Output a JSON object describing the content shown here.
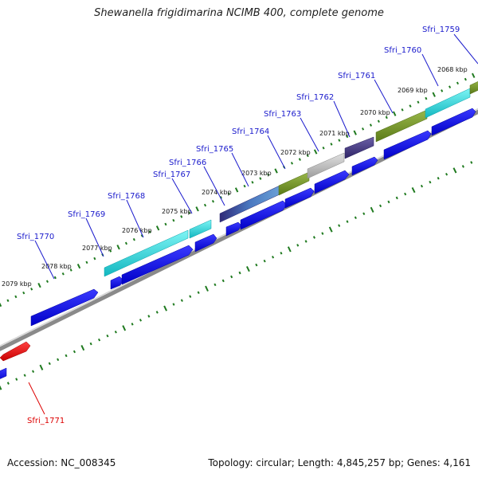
{
  "title": "Shewanella frigidimarina NCIMB 400, complete genome",
  "footer": {
    "accession": "Accession: NC_008345",
    "summary": "Topology: circular; Length: 4,845,257 bp; Genes: 4,161"
  },
  "colors": {
    "link_label": "#1a1acc",
    "highlight_label": "#dd0000",
    "backbone": "#909090",
    "tick": "#1f7a1f",
    "default_gene": "#0000ee",
    "highlight_gene": "#ee0000"
  },
  "ticks": [
    "2068 kbp",
    "2069 kbp",
    "2070 kbp",
    "2071 kbp",
    "2072 kbp",
    "2073 kbp",
    "2074 kbp",
    "2075 kbp",
    "2076 kbp",
    "2077 kbp",
    "2078 kbp",
    "2079 kbp"
  ],
  "gene_labels": [
    "Sfri_1759",
    "Sfri_1760",
    "Sfri_1761",
    "Sfri_1762",
    "Sfri_1763",
    "Sfri_1764",
    "Sfri_1765",
    "Sfri_1766",
    "Sfri_1767",
    "Sfri_1768",
    "Sfri_1769",
    "Sfri_1770",
    "Sfri_1771"
  ]
}
